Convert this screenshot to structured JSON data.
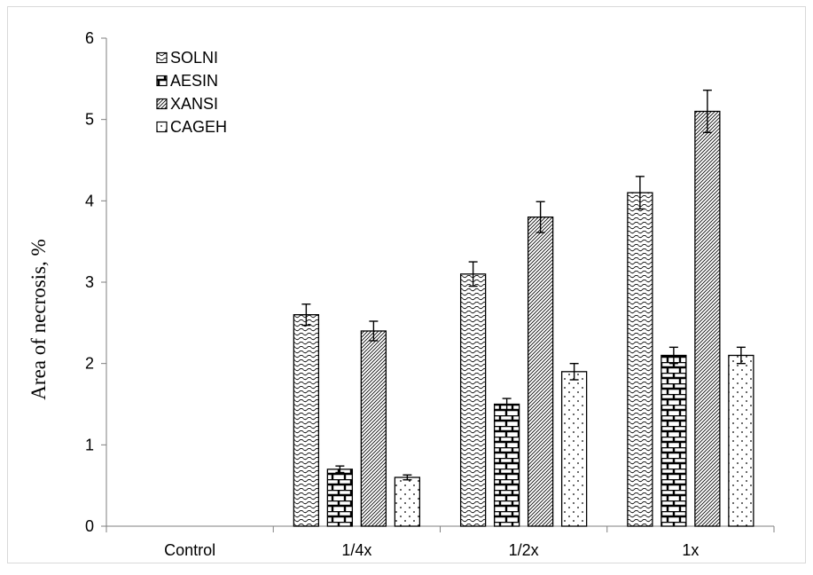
{
  "chart_data": {
    "type": "bar",
    "title": "",
    "xlabel": "",
    "ylabel": "Area of necrosis, %",
    "ylim": [
      0,
      6
    ],
    "yticks": [
      0,
      1,
      2,
      3,
      4,
      5,
      6
    ],
    "grid": false,
    "legend_position": "top-left",
    "categories": [
      "Control",
      "1/4x",
      "1/2x",
      "1x"
    ],
    "series": [
      {
        "name": "SOLNI",
        "pattern": "wave",
        "values": [
          0,
          2.6,
          3.1,
          4.1
        ],
        "errors": [
          0,
          0.13,
          0.15,
          0.2
        ]
      },
      {
        "name": "AESIN",
        "pattern": "brick",
        "values": [
          0,
          0.7,
          1.5,
          2.1
        ],
        "errors": [
          0,
          0.04,
          0.07,
          0.1
        ]
      },
      {
        "name": "XANSI",
        "pattern": "diagonal",
        "values": [
          0,
          2.4,
          3.8,
          5.1
        ],
        "errors": [
          0,
          0.12,
          0.19,
          0.26
        ]
      },
      {
        "name": "CAGEH",
        "pattern": "dots",
        "values": [
          0,
          0.6,
          1.9,
          2.1
        ],
        "errors": [
          0,
          0.03,
          0.1,
          0.1
        ]
      }
    ]
  }
}
